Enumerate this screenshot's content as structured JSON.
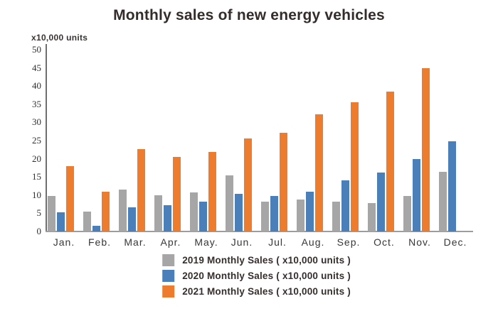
{
  "chart_data": {
    "type": "bar",
    "title": "Monthly sales of new energy vehicles",
    "y_unit_label": "x10,000 units",
    "xlabel": "",
    "ylabel": "x10,000 units",
    "ylim": [
      0,
      50
    ],
    "ytick_step": 5,
    "ytick_labels": [
      "0",
      "5",
      "10",
      "15",
      "20",
      "25",
      "30",
      "35",
      "40",
      "45",
      "50"
    ],
    "grid": false,
    "legend_position": "bottom",
    "categories": [
      "Jan.",
      "Feb.",
      "Mar.",
      "Apr.",
      "May.",
      "Jun.",
      "Jul.",
      "Aug.",
      "Sep.",
      "Oct.",
      "Nov.",
      "Dec."
    ],
    "series": [
      {
        "name": "2019 Monthly Sales ( x10,000 units )",
        "key": "2019",
        "color": "#a6a6a6",
        "values": [
          9.8,
          5.4,
          11.5,
          10.0,
          10.8,
          15.5,
          8.2,
          8.7,
          8.2,
          7.8,
          9.8,
          16.5
        ]
      },
      {
        "name": "2020 Monthly Sales ( x10,000 units )",
        "key": "2020",
        "color": "#4b7fba",
        "values": [
          5.2,
          1.5,
          6.6,
          7.3,
          8.3,
          10.4,
          9.8,
          11.0,
          14.1,
          16.3,
          20.0,
          24.8
        ]
      },
      {
        "name": "2021 Monthly Sales ( x10,000 units )",
        "key": "2021",
        "color": "#ee7c2f",
        "values": [
          18.0,
          11.0,
          22.6,
          20.6,
          21.8,
          25.6,
          27.2,
          32.2,
          35.5,
          38.4,
          45.0,
          null
        ]
      }
    ]
  }
}
